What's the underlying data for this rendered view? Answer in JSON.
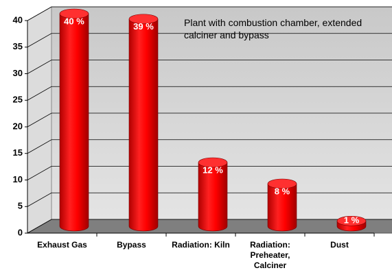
{
  "chart_data": {
    "type": "cylinder-bar",
    "annotation": "Plant with combustion chamber, extended calciner and bypass",
    "categories": [
      "Exhaust Gas",
      "Bypass",
      "Radiation: Kiln",
      "Radiation: Preheater, Calciner",
      "Dust"
    ],
    "values": [
      40,
      39,
      12,
      8,
      1
    ],
    "value_labels": [
      "40 %",
      "39 %",
      "12 %",
      "8 %",
      "1 %"
    ],
    "color": "#ff0000",
    "ylim": [
      0,
      40
    ],
    "yticks": [
      0,
      5,
      10,
      15,
      20,
      25,
      30,
      35,
      40
    ],
    "grid": true
  }
}
